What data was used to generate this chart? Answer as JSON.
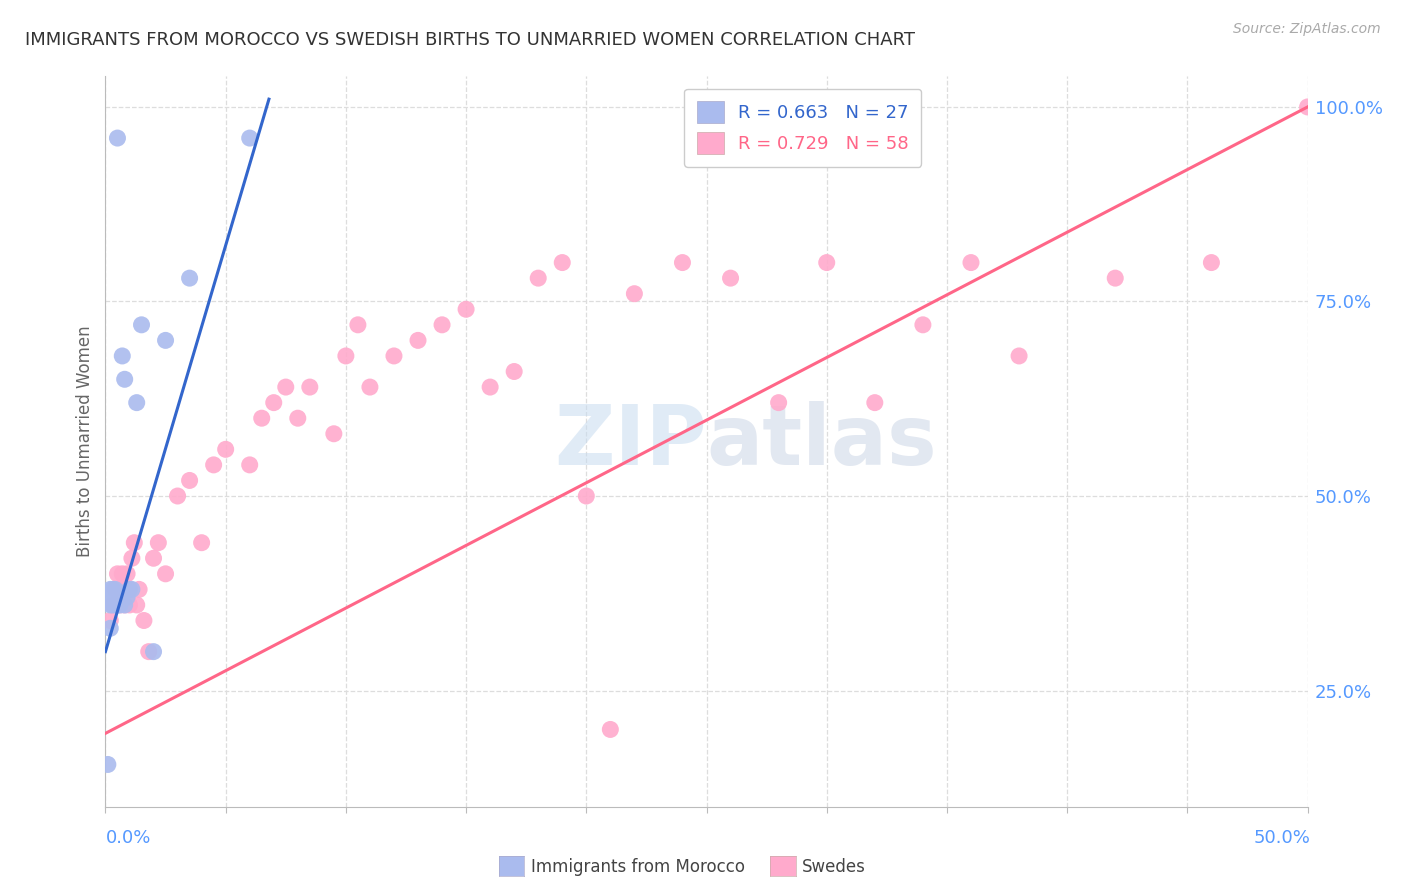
{
  "title": "IMMIGRANTS FROM MOROCCO VS SWEDISH BIRTHS TO UNMARRIED WOMEN CORRELATION CHART",
  "source": "Source: ZipAtlas.com",
  "ylabel": "Births to Unmarried Women",
  "legend_blue_text": "R = 0.663   N = 27",
  "legend_pink_text": "R = 0.729   N = 58",
  "legend_label_blue": "Immigrants from Morocco",
  "legend_label_pink": "Swedes",
  "x_min": 0.0,
  "x_max": 0.5,
  "y_min": 0.1,
  "y_max": 1.04,
  "blue_scatter_color": "#aabbee",
  "pink_scatter_color": "#ffaacc",
  "blue_line_color": "#3366cc",
  "pink_line_color": "#ff6688",
  "axis_label_color": "#5599ff",
  "grid_color": "#dddddd",
  "title_color": "#333333",
  "source_color": "#aaaaaa",
  "watermark_color": "#d8e8f8",
  "blue_x": [
    0.001,
    0.002,
    0.002,
    0.002,
    0.003,
    0.003,
    0.003,
    0.004,
    0.004,
    0.004,
    0.005,
    0.005,
    0.005,
    0.006,
    0.006,
    0.007,
    0.008,
    0.008,
    0.009,
    0.01,
    0.011,
    0.013,
    0.015,
    0.02,
    0.025,
    0.035,
    0.06
  ],
  "blue_y": [
    0.155,
    0.33,
    0.36,
    0.38,
    0.36,
    0.37,
    0.38,
    0.36,
    0.37,
    0.38,
    0.36,
    0.37,
    0.96,
    0.36,
    0.37,
    0.68,
    0.36,
    0.65,
    0.37,
    0.38,
    0.38,
    0.62,
    0.72,
    0.3,
    0.7,
    0.78,
    0.96
  ],
  "pink_x": [
    0.002,
    0.003,
    0.004,
    0.005,
    0.006,
    0.006,
    0.007,
    0.008,
    0.008,
    0.009,
    0.01,
    0.01,
    0.011,
    0.012,
    0.013,
    0.014,
    0.016,
    0.018,
    0.02,
    0.022,
    0.025,
    0.03,
    0.035,
    0.04,
    0.045,
    0.05,
    0.06,
    0.065,
    0.07,
    0.075,
    0.08,
    0.085,
    0.095,
    0.1,
    0.105,
    0.11,
    0.12,
    0.13,
    0.14,
    0.15,
    0.16,
    0.17,
    0.18,
    0.19,
    0.2,
    0.21,
    0.22,
    0.24,
    0.26,
    0.28,
    0.3,
    0.32,
    0.34,
    0.36,
    0.38,
    0.42,
    0.46,
    0.5
  ],
  "pink_y": [
    0.34,
    0.36,
    0.38,
    0.4,
    0.36,
    0.38,
    0.4,
    0.36,
    0.38,
    0.4,
    0.36,
    0.38,
    0.42,
    0.44,
    0.36,
    0.38,
    0.34,
    0.3,
    0.42,
    0.44,
    0.4,
    0.5,
    0.52,
    0.44,
    0.54,
    0.56,
    0.54,
    0.6,
    0.62,
    0.64,
    0.6,
    0.64,
    0.58,
    0.68,
    0.72,
    0.64,
    0.68,
    0.7,
    0.72,
    0.74,
    0.64,
    0.66,
    0.78,
    0.8,
    0.5,
    0.2,
    0.76,
    0.8,
    0.78,
    0.62,
    0.8,
    0.62,
    0.72,
    0.8,
    0.68,
    0.78,
    0.8,
    1.0
  ],
  "pink_line_x0": 0.0,
  "pink_line_y0": 0.195,
  "pink_line_x1": 0.5,
  "pink_line_y1": 1.0,
  "blue_line_x0": 0.0,
  "blue_line_y0": 0.3,
  "blue_line_x1": 0.068,
  "blue_line_y1": 1.01,
  "y_ticks": [
    0.25,
    0.5,
    0.75,
    1.0
  ],
  "x_ticks_n": 11
}
